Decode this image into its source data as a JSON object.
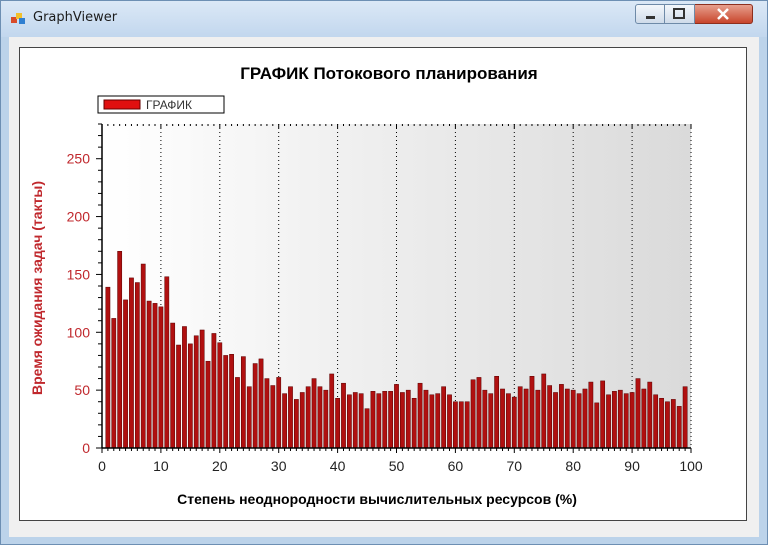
{
  "window": {
    "title": "GraphViewer"
  },
  "chart_data": {
    "type": "bar",
    "title": "ГРАФИК Потокового планирования",
    "xlabel": "Степень неоднородности вычислительных ресурсов (%)",
    "ylabel": "Время ожидания задач (такты)",
    "legend": {
      "position": "top-left",
      "entries": [
        "ГРАФИК"
      ]
    },
    "xlim": [
      0,
      100
    ],
    "ylim": [
      0,
      280
    ],
    "x_ticks": [
      0,
      10,
      20,
      30,
      40,
      50,
      60,
      70,
      80,
      90,
      100
    ],
    "y_ticks": [
      0,
      50,
      100,
      150,
      200,
      250
    ],
    "grid": {
      "vertical": true,
      "horizontal": false,
      "style": "dotted"
    },
    "series": [
      {
        "name": "ГРАФИК",
        "color": "#b01010",
        "x": [
          1,
          2,
          3,
          4,
          5,
          6,
          7,
          8,
          9,
          10,
          11,
          12,
          13,
          14,
          15,
          16,
          17,
          18,
          19,
          20,
          21,
          22,
          23,
          24,
          25,
          26,
          27,
          28,
          29,
          30,
          31,
          32,
          33,
          34,
          35,
          36,
          37,
          38,
          39,
          40,
          41,
          42,
          43,
          44,
          45,
          46,
          47,
          48,
          49,
          50,
          51,
          52,
          53,
          54,
          55,
          56,
          57,
          58,
          59,
          60,
          61,
          62,
          63,
          64,
          65,
          66,
          67,
          68,
          69,
          70,
          71,
          72,
          73,
          74,
          75,
          76,
          77,
          78,
          79,
          80,
          81,
          82,
          83,
          84,
          85,
          86,
          87,
          88,
          89,
          90,
          91,
          92,
          93,
          94,
          95,
          96,
          97,
          98,
          99,
          100
        ],
        "values": [
          139,
          112,
          170,
          128,
          147,
          143,
          159,
          127,
          125,
          122,
          148,
          108,
          89,
          105,
          90,
          97,
          102,
          75,
          99,
          91,
          80,
          81,
          61,
          79,
          53,
          73,
          77,
          60,
          54,
          61,
          47,
          53,
          42,
          48,
          53,
          60,
          53,
          50,
          64,
          43,
          56,
          46,
          48,
          47,
          34,
          49,
          47,
          49,
          49,
          55,
          48,
          50,
          43,
          56,
          50,
          46,
          47,
          53,
          46,
          40,
          40,
          40,
          59,
          61,
          50,
          47,
          62,
          51,
          47,
          44,
          53,
          51,
          62,
          50,
          64,
          54,
          48,
          55,
          51,
          50,
          47,
          51,
          57,
          39,
          58,
          46,
          49,
          50,
          47,
          48,
          60,
          51,
          57,
          46,
          43,
          40,
          42,
          36,
          53,
          0
        ]
      }
    ]
  }
}
